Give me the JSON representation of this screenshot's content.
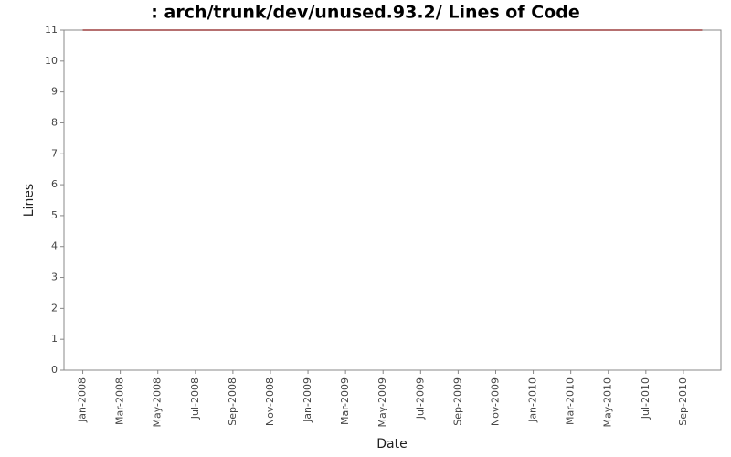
{
  "chart_data": {
    "type": "line",
    "title": ": arch/trunk/dev/unused.93.2/ Lines of Code",
    "x_label": "Date",
    "y_label": "Lines",
    "x": [
      "2008-01",
      "2010-10"
    ],
    "values": [
      11,
      11
    ],
    "color": "#8b1a1a",
    "xlim": [
      "2007-12",
      "2010-11"
    ],
    "xticks": [
      {
        "value": "2008-01",
        "label": "Jan-2008"
      },
      {
        "value": "2008-03",
        "label": "Mar-2008"
      },
      {
        "value": "2008-05",
        "label": "May-2008"
      },
      {
        "value": "2008-07",
        "label": "Jul-2008"
      },
      {
        "value": "2008-09",
        "label": "Sep-2008"
      },
      {
        "value": "2008-11",
        "label": "Nov-2008"
      },
      {
        "value": "2009-01",
        "label": "Jan-2009"
      },
      {
        "value": "2009-03",
        "label": "Mar-2009"
      },
      {
        "value": "2009-05",
        "label": "May-2009"
      },
      {
        "value": "2009-07",
        "label": "Jul-2009"
      },
      {
        "value": "2009-09",
        "label": "Sep-2009"
      },
      {
        "value": "2009-11",
        "label": "Nov-2009"
      },
      {
        "value": "2010-01",
        "label": "Jan-2010"
      },
      {
        "value": "2010-03",
        "label": "Mar-2010"
      },
      {
        "value": "2010-05",
        "label": "May-2010"
      },
      {
        "value": "2010-07",
        "label": "Jul-2010"
      },
      {
        "value": "2010-09",
        "label": "Sep-2010"
      }
    ],
    "ylim": [
      0,
      11
    ],
    "yticks": [
      0,
      1,
      2,
      3,
      4,
      5,
      6,
      7,
      8,
      9,
      10,
      11
    ],
    "grid": false
  }
}
